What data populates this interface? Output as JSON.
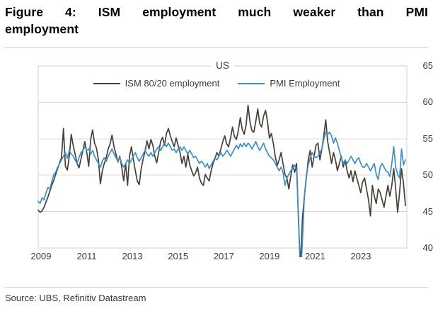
{
  "figure": {
    "title_lines": [
      "Figure 4: ISM employment much weaker than PMI",
      "employment"
    ],
    "source": "Source: UBS, Refinitiv Datastream"
  },
  "chart_data": {
    "type": "line",
    "title": "US",
    "xlabel": "",
    "ylabel": "",
    "ylim": [
      40,
      65
    ],
    "y_ticks": [
      65,
      60,
      55,
      50,
      45,
      40
    ],
    "x_tick_labels": [
      "2009",
      "2011",
      "2013",
      "2015",
      "2017",
      "2019",
      "2021",
      "2023"
    ],
    "x_frequency": "monthly",
    "x_range": "2009-01 to 2024-10",
    "grid": "horizontal",
    "legend_position": "top-center",
    "grid_color": "#d9d9d9",
    "border_color": "#cfcfcf",
    "series": [
      {
        "name": "ISM 80/20 employment",
        "color": "#474038",
        "values": [
          45.2,
          44.9,
          45.1,
          45.6,
          46.3,
          47.0,
          47.8,
          48.6,
          49.3,
          50.1,
          50.9,
          51.7,
          52.4,
          56.4,
          51.2,
          50.7,
          52.6,
          55.6,
          54.1,
          52.9,
          51.6,
          51.0,
          52.2,
          53.4,
          54.6,
          53.1,
          51.2,
          54.9,
          56.2,
          54.4,
          53.7,
          52.1,
          48.8,
          50.6,
          51.6,
          52.4,
          53.6,
          54.3,
          55.5,
          53.9,
          52.9,
          51.8,
          52.6,
          51.1,
          49.2,
          51.6,
          48.6,
          52.6,
          53.9,
          52.1,
          50.6,
          49.2,
          48.7,
          50.9,
          52.2,
          53.3,
          54.7,
          53.6,
          54.9,
          54.1,
          52.6,
          51.7,
          53.1,
          54.6,
          55.2,
          54.1,
          55.7,
          56.4,
          55.4,
          54.6,
          53.9,
          55.1,
          54.1,
          53.1,
          51.6,
          52.6,
          51.1,
          52.9,
          51.4,
          50.6,
          49.9,
          50.3,
          51.1,
          49.6,
          48.9,
          48.6,
          50.1,
          49.6,
          49.2,
          50.6,
          51.6,
          52.3,
          53.1,
          52.6,
          53.6,
          54.6,
          55.4,
          54.3,
          53.9,
          55.1,
          56.6,
          55.3,
          54.9,
          56.1,
          57.9,
          56.3,
          55.6,
          56.9,
          59.6,
          57.3,
          56.1,
          55.9,
          57.4,
          59.1,
          57.1,
          56.6,
          58.1,
          58.9,
          57.4,
          55.1,
          55.7,
          54.4,
          52.6,
          51.3,
          52.1,
          53.1,
          51.6,
          50.1,
          49.6,
          48.1,
          49.9,
          51.4,
          50.4,
          51.6,
          43.5,
          37.5,
          44.1,
          47.1,
          49.6,
          52.1,
          53.4,
          51.1,
          52.6,
          54.1,
          54.4,
          52.1,
          53.6,
          55.4,
          57.6,
          54.6,
          53.1,
          51.6,
          53.1,
          52.1,
          50.6,
          51.6,
          52.6,
          51.1,
          52.1,
          50.6,
          49.6,
          50.6,
          49.1,
          50.6,
          49.6,
          48.6,
          47.6,
          49.1,
          49.6,
          48.1,
          46.6,
          44.4,
          48.6,
          47.1,
          46.1,
          48.1,
          47.6,
          46.6,
          45.6,
          47.1,
          48.6,
          47.1,
          48.6,
          50.9,
          48.1,
          44.9,
          47.6,
          50.9,
          48.9,
          45.8
        ]
      },
      {
        "name": "PMI Employment",
        "color": "#3e8ec9",
        "values": [
          46.4,
          46.1,
          46.9,
          46.6,
          47.6,
          48.3,
          48.1,
          49.1,
          50.1,
          50.4,
          51.1,
          51.6,
          52.1,
          52.6,
          53.1,
          52.3,
          53.4,
          52.9,
          52.6,
          52.1,
          51.6,
          52.4,
          53.1,
          53.4,
          53.9,
          53.4,
          53.6,
          52.9,
          53.4,
          52.6,
          52.1,
          51.6,
          51.1,
          51.9,
          52.4,
          51.9,
          52.6,
          53.1,
          53.6,
          52.9,
          52.4,
          51.9,
          52.4,
          51.6,
          51.1,
          51.6,
          52.1,
          51.6,
          52.1,
          52.6,
          53.1,
          52.4,
          51.9,
          52.4,
          52.9,
          53.4,
          52.9,
          52.6,
          53.1,
          52.6,
          53.1,
          53.6,
          53.9,
          53.4,
          53.9,
          54.4,
          53.9,
          54.4,
          53.9,
          53.4,
          53.6,
          53.1,
          53.6,
          53.9,
          53.4,
          53.9,
          53.4,
          52.9,
          53.4,
          52.9,
          52.4,
          52.6,
          52.1,
          51.6,
          51.9,
          51.6,
          51.1,
          51.6,
          50.9,
          51.4,
          51.9,
          52.4,
          52.1,
          52.6,
          53.1,
          52.6,
          52.9,
          53.4,
          53.1,
          52.6,
          53.1,
          53.6,
          54.1,
          53.6,
          54.3,
          53.9,
          54.4,
          53.9,
          54.4,
          54.1,
          53.6,
          54.1,
          54.6,
          53.9,
          53.4,
          53.9,
          54.4,
          53.6,
          53.1,
          52.6,
          52.4,
          52.1,
          51.6,
          51.1,
          50.6,
          51.1,
          50.4,
          48.6,
          49.6,
          50.1,
          50.6,
          50.9,
          51.4,
          50.6,
          44.0,
          35.5,
          41.0,
          47.1,
          49.9,
          51.4,
          52.4,
          53.1,
          52.6,
          52.4,
          52.6,
          53.1,
          53.6,
          54.9,
          55.9,
          55.6,
          55.9,
          55.4,
          54.4,
          55.1,
          54.4,
          53.4,
          52.4,
          51.6,
          52.1,
          51.6,
          52.1,
          52.6,
          52.1,
          51.6,
          52.1,
          52.4,
          51.6,
          51.1,
          51.1,
          51.6,
          51.1,
          50.6,
          51.1,
          51.6,
          50.1,
          49.4,
          51.1,
          51.6,
          51.1,
          50.6,
          50.4,
          49.8,
          51.6,
          53.9,
          51.1,
          50.1,
          49.6,
          53.6,
          51.4,
          52.1
        ]
      }
    ]
  }
}
